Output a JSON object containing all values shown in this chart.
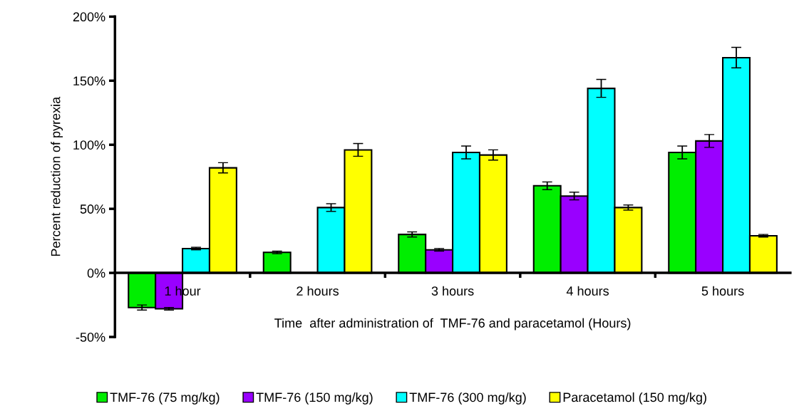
{
  "chart_data": {
    "type": "bar",
    "xlabel": "Time  after administration of  TMF-76 and paracetamol (Hours)",
    "ylabel": "Percent reduction of pyrexia",
    "categories": [
      "1 hour",
      "2 hours",
      "3 hours",
      "4 hours",
      "5 hours"
    ],
    "series": [
      {
        "name": "TMF-76 (75 mg/kg)",
        "color": "#00ee00",
        "values": [
          -27,
          16,
          30,
          68,
          94
        ],
        "errors": [
          2,
          1,
          2,
          3,
          5
        ]
      },
      {
        "name": "TMF-76 (150 mg/kg)",
        "color": "#9900ff",
        "values": [
          -28,
          null,
          18,
          60,
          103
        ],
        "errors": [
          1,
          null,
          1,
          3,
          5
        ]
      },
      {
        "name": "TMF-76 (300 mg/kg)",
        "color": "#00ffff",
        "values": [
          19,
          51,
          94,
          144,
          168
        ],
        "errors": [
          1,
          3,
          5,
          7,
          8
        ]
      },
      {
        "name": "Paracetamol (150 mg/kg)",
        "color": "#ffff00",
        "values": [
          82,
          96,
          92,
          51,
          29
        ],
        "errors": [
          4,
          5,
          4,
          2,
          1
        ]
      }
    ],
    "ylim": [
      -50,
      200
    ],
    "yticks": [
      {
        "value": -50,
        "label": "-50%"
      },
      {
        "value": 0,
        "label": "0%"
      },
      {
        "value": 50,
        "label": "50%"
      },
      {
        "value": 100,
        "label": "100%"
      },
      {
        "value": 150,
        "label": "150%"
      },
      {
        "value": 200,
        "label": "200%"
      }
    ],
    "grid": false,
    "legend": "bottom"
  }
}
